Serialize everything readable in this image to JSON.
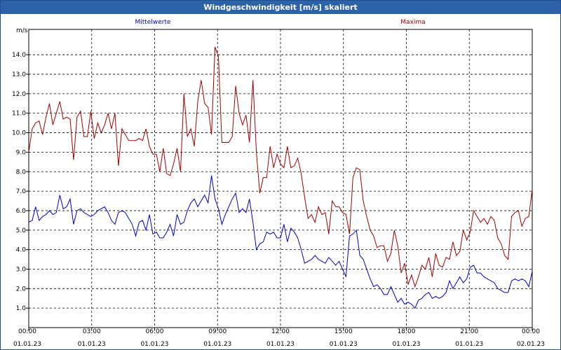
{
  "window": {
    "title": "Windgeschwindigkeit [m/s] skaliert"
  },
  "chart_data": {
    "type": "line",
    "ylabel": "m/s",
    "ylim": [
      0,
      15.3
    ],
    "yticks": [
      "1.0",
      "2.0",
      "3.0",
      "4.0",
      "5.0",
      "6.0",
      "7.0",
      "8.0",
      "9.0",
      "10.0",
      "11.0",
      "12.0",
      "13.0",
      "14.0"
    ],
    "xlim": [
      0,
      24
    ],
    "xticks": [
      {
        "time": "00:00",
        "date": "01.01.23"
      },
      {
        "time": "03:00",
        "date": "01.01.23"
      },
      {
        "time": "06:00",
        "date": "01.01.23"
      },
      {
        "time": "09:00",
        "date": "01.01.23"
      },
      {
        "time": "12:00",
        "date": "01.01.23"
      },
      {
        "time": "15:00",
        "date": "01.01.23"
      },
      {
        "time": "18:00",
        "date": "01.01.23"
      },
      {
        "time": "21:00",
        "date": "01.01.23"
      },
      {
        "time": "00:00",
        "date": "02.01.23"
      }
    ],
    "grid": true,
    "series": [
      {
        "name": "Mittelwerte",
        "color": "#0000c0",
        "values": [
          5.4,
          5.5,
          6.2,
          5.5,
          5.7,
          5.8,
          6.0,
          5.8,
          5.9,
          6.8,
          6.1,
          6.2,
          6.6,
          5.3,
          6.0,
          6.1,
          5.9,
          5.8,
          5.7,
          5.8,
          6.0,
          6.1,
          6.2,
          5.9,
          5.5,
          5.3,
          5.9,
          6.0,
          5.9,
          5.6,
          5.3,
          4.7,
          5.4,
          5.5,
          5.0,
          5.8,
          4.8,
          4.9,
          4.6,
          4.6,
          4.9,
          5.3,
          4.7,
          5.8,
          5.3,
          5.4,
          6.0,
          6.4,
          6.6,
          6.2,
          6.5,
          6.8,
          6.4,
          7.8,
          6.6,
          6.1,
          5.3,
          5.8,
          6.2,
          6.6,
          6.9,
          5.9,
          6.1,
          5.9,
          6.6,
          5.4,
          4.0,
          4.3,
          4.4,
          4.9,
          4.8,
          4.9,
          4.6,
          4.6,
          5.3,
          4.4,
          5.1,
          4.9,
          4.6,
          4.0,
          3.3,
          3.4,
          3.5,
          3.7,
          3.5,
          3.4,
          3.3,
          3.6,
          3.4,
          3.2,
          3.4,
          3.0,
          2.6,
          4.7,
          4.8,
          5.0,
          3.7,
          3.5,
          3.0,
          2.5,
          2.1,
          2.2,
          2.0,
          1.7,
          1.7,
          2.1,
          1.7,
          1.3,
          1.5,
          1.2,
          1.3,
          1.2,
          1.0,
          1.4,
          1.5,
          1.7,
          1.8,
          1.5,
          1.6,
          1.5,
          1.6,
          1.8,
          2.4,
          2.0,
          2.3,
          2.6,
          2.3,
          2.5,
          3.1,
          3.2,
          2.8,
          2.8,
          2.6,
          2.5,
          2.4,
          2.3,
          2.0,
          1.9,
          1.8,
          1.8,
          2.4,
          2.5,
          2.4,
          2.5,
          2.4,
          2.1,
          2.9
        ]
      },
      {
        "name": "Maxima",
        "color": "#a00000",
        "values": [
          9.0,
          10.2,
          10.5,
          10.6,
          9.9,
          10.8,
          11.5,
          10.4,
          11.0,
          11.6,
          10.7,
          10.8,
          10.7,
          8.6,
          10.8,
          11.1,
          9.8,
          9.8,
          11.1,
          9.7,
          10.5,
          10.0,
          10.4,
          11.0,
          10.2,
          11.0,
          8.3,
          10.2,
          9.9,
          9.6,
          9.6,
          9.6,
          9.7,
          9.6,
          10.2,
          9.3,
          8.9,
          8.9,
          8.0,
          9.2,
          7.9,
          7.8,
          8.4,
          9.2,
          8.0,
          12.0,
          9.8,
          10.2,
          9.3,
          11.6,
          12.7,
          11.5,
          11.3,
          9.9,
          14.4,
          13.9,
          9.5,
          9.5,
          9.5,
          9.8,
          12.4,
          11.0,
          10.4,
          10.9,
          9.5,
          12.7,
          9.0,
          6.9,
          7.7,
          7.7,
          9.3,
          8.2,
          8.9,
          8.4,
          8.2,
          9.3,
          8.2,
          8.3,
          8.7,
          7.9,
          6.7,
          5.6,
          5.8,
          5.4,
          6.2,
          5.8,
          5.9,
          4.8,
          6.5,
          6.2,
          6.2,
          5.9,
          5.8,
          4.8,
          7.7,
          8.2,
          8.1,
          6.5,
          5.7,
          5.0,
          4.7,
          4.1,
          4.2,
          4.2,
          3.4,
          3.8,
          5.0,
          4.2,
          2.8,
          3.3,
          2.2,
          2.7,
          2.1,
          2.6,
          3.2,
          3.0,
          3.6,
          2.6,
          3.8,
          3.2,
          3.1,
          3.6,
          3.5,
          4.4,
          3.7,
          3.9,
          5.0,
          4.5,
          4.9,
          6.0,
          5.7,
          5.4,
          5.6,
          5.3,
          5.7,
          5.5,
          4.6,
          4.3,
          3.7,
          3.5,
          5.7,
          5.9,
          6.0,
          5.2,
          5.6,
          5.7,
          7.1
        ]
      }
    ]
  }
}
